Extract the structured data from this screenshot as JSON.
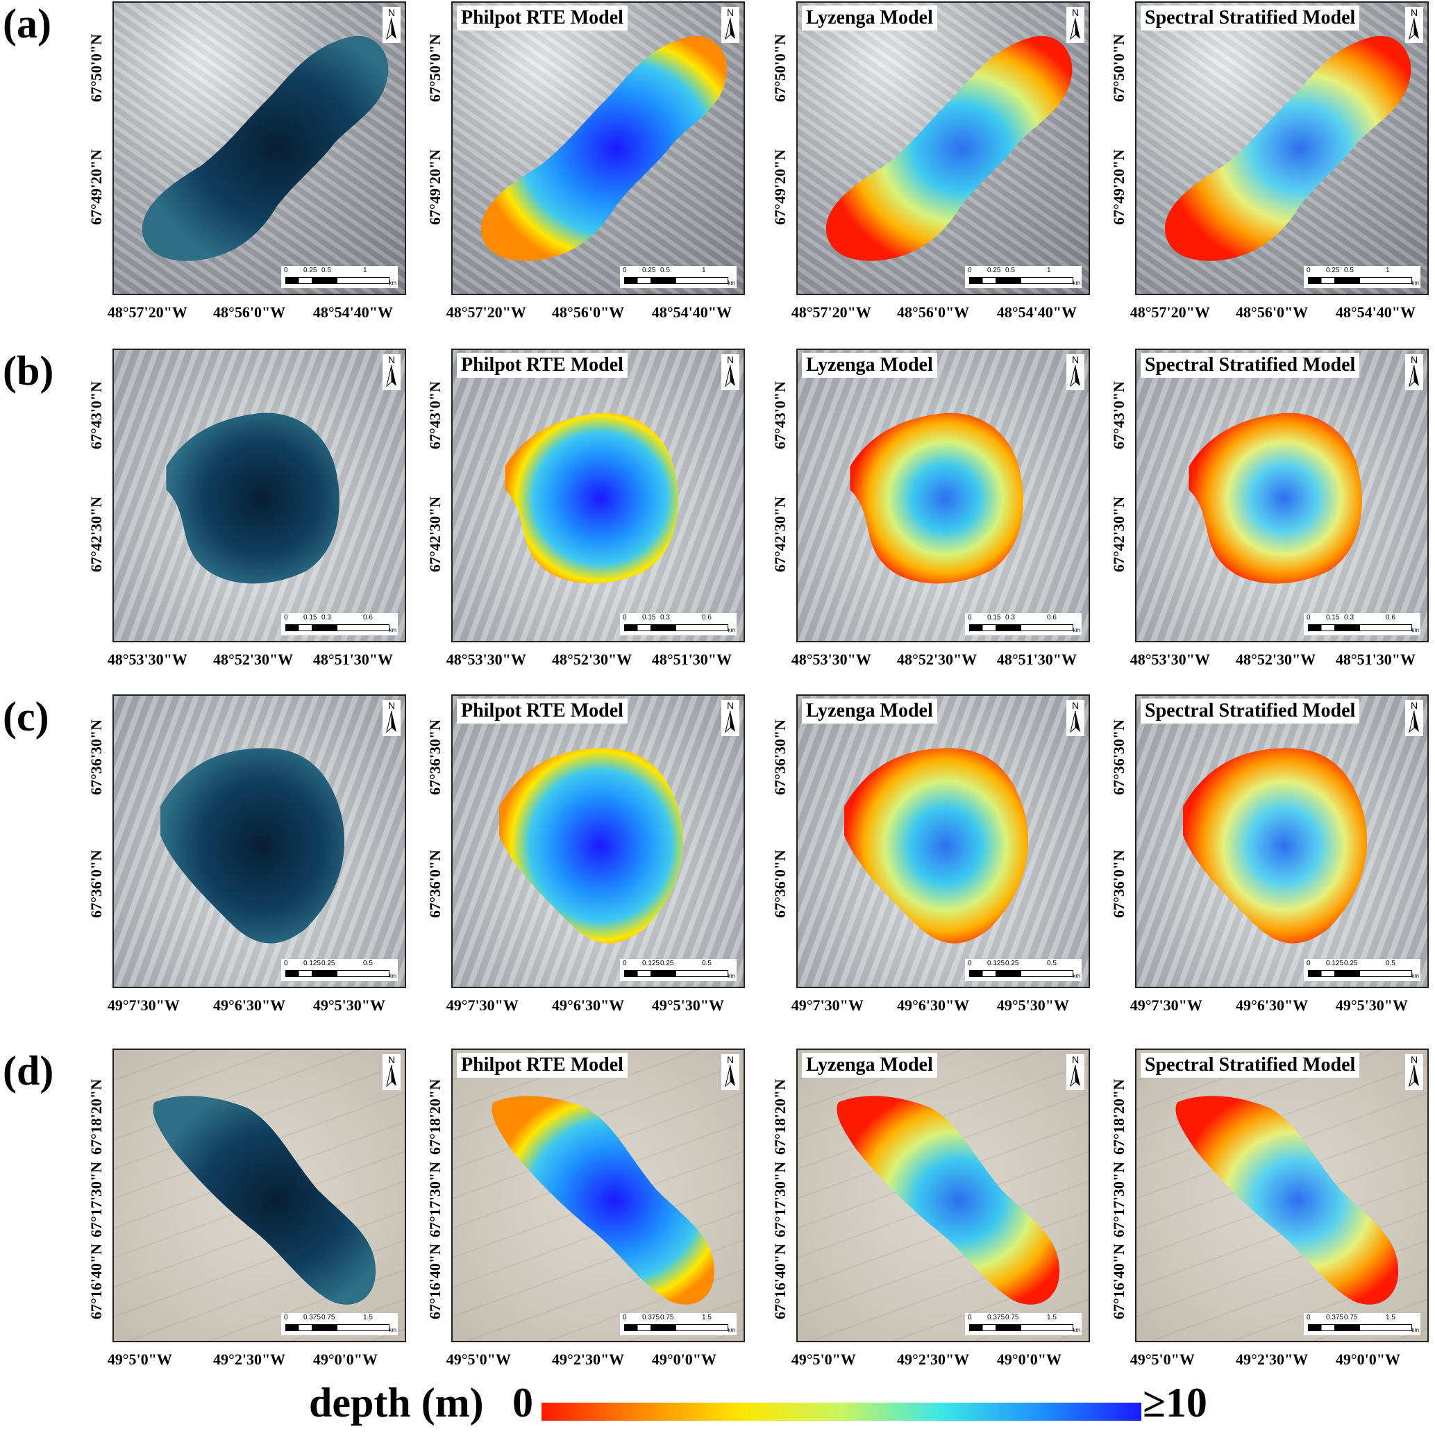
{
  "figure": {
    "row_labels": [
      "(a)",
      "(b)",
      "(c)",
      "(d)"
    ],
    "model_titles": [
      "Philpot RTE Model",
      "Lyzenga Model",
      "Spectral Stratified Model"
    ],
    "north_label": "N",
    "scale_unit": "km"
  },
  "rows": [
    {
      "label": "(a)",
      "lat_labels": [
        "67°50'0\"N",
        "67°49'20\"N"
      ],
      "lon_labels": [
        "48°57'20\"W",
        "48°56'0\"W",
        "48°54'40\"W"
      ],
      "scale_labels": [
        "0",
        "0.25",
        "0.5",
        "1"
      ]
    },
    {
      "label": "(b)",
      "lat_labels": [
        "67°43'0\"N",
        "67°42'30\"N"
      ],
      "lon_labels": [
        "48°53'30\"W",
        "48°52'30\"W",
        "48°51'30\"W"
      ],
      "scale_labels": [
        "0",
        "0.15",
        "0.3",
        "0.6"
      ]
    },
    {
      "label": "(c)",
      "lat_labels": [
        "67°36'30\"N",
        "67°36'0\"N"
      ],
      "lon_labels": [
        "49°7'30\"W",
        "49°6'30\"W",
        "49°5'30\"W"
      ],
      "scale_labels": [
        "0",
        "0.125",
        "0.25",
        "0.5"
      ]
    },
    {
      "label": "(d)",
      "lat_labels": [
        "67°18'20\"N",
        "67°17'30\"N",
        "67°16'40\"N"
      ],
      "lon_labels": [
        "49°5'0\"W",
        "49°2'30\"W",
        "49°0'0\"W"
      ],
      "scale_labels": [
        "0",
        "0.375",
        "0.75",
        "1.5"
      ]
    }
  ],
  "legend": {
    "title": "depth (m)",
    "min_label": "0",
    "max_label": "≥10",
    "colors": [
      "#ff1a00",
      "#ff8a00",
      "#ffe600",
      "#c8f560",
      "#3ce6e6",
      "#1e90ff",
      "#1a1aff"
    ]
  },
  "colors": {
    "lake_rgb": "#0f3e5e",
    "deep": "#1a1aff",
    "mid": "#3cc8f0",
    "shallow": "#ffe600",
    "edge": "#ff1a00"
  }
}
